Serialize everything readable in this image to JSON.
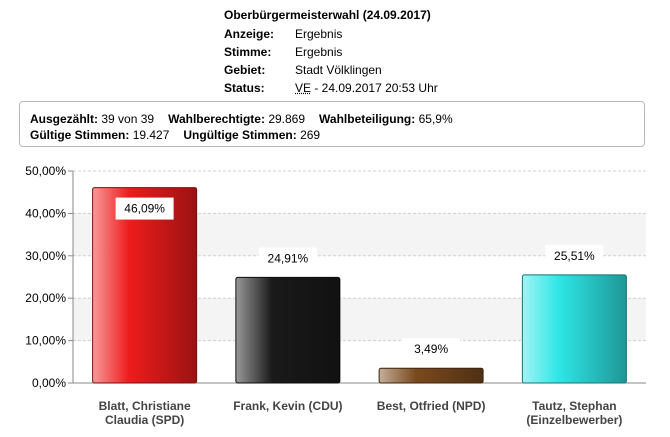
{
  "header": {
    "title": "Oberbürgermeisterwahl (24.09.2017)",
    "rows": [
      {
        "label": "Anzeige:",
        "value": "Ergebnis"
      },
      {
        "label": "Stimme:",
        "value": "Ergebnis"
      },
      {
        "label": "Gebiet:",
        "value": "Stadt Völklingen"
      }
    ],
    "status_label": "Status:",
    "status_code": "VE",
    "status_text": " - 24.09.2017 20:53 Uhr"
  },
  "summary": {
    "ausgezaehlt_label": "Ausgezählt:",
    "ausgezaehlt_value": "39 von 39",
    "wahlberechtigte_label": "Wahlberechtigte:",
    "wahlberechtigte_value": "29.869",
    "wahlbeteiligung_label": "Wahlbeteiligung:",
    "wahlbeteiligung_value": "65,9%",
    "gueltige_label": "Gültige Stimmen:",
    "gueltige_value": "19.427",
    "ungueltige_label": "Ungültige Stimmen:",
    "ungueltige_value": "269"
  },
  "chart_data": {
    "type": "bar",
    "categories": [
      [
        "Blatt, Christiane",
        "Claudia (SPD)"
      ],
      [
        "Frank, Kevin (CDU)"
      ],
      [
        "Best, Otfried (NPD)"
      ],
      [
        "Tautz, Stephan",
        "(Einzelbewerber)"
      ]
    ],
    "values": [
      46.09,
      24.91,
      3.49,
      25.51
    ],
    "value_labels": [
      "46,09%",
      "24,91%",
      "3,49%",
      "25,51%"
    ],
    "colors": [
      "#ee1c1c",
      "#1a1a1a",
      "#7a4a1e",
      "#2ee6e6"
    ],
    "ylim": [
      0,
      50
    ],
    "yticks": [
      0,
      10,
      20,
      30,
      40,
      50
    ],
    "ytick_labels": [
      "0,00%",
      "10,00%",
      "20,00%",
      "30,00%",
      "40,00%",
      "50,00%"
    ],
    "grid": true
  }
}
